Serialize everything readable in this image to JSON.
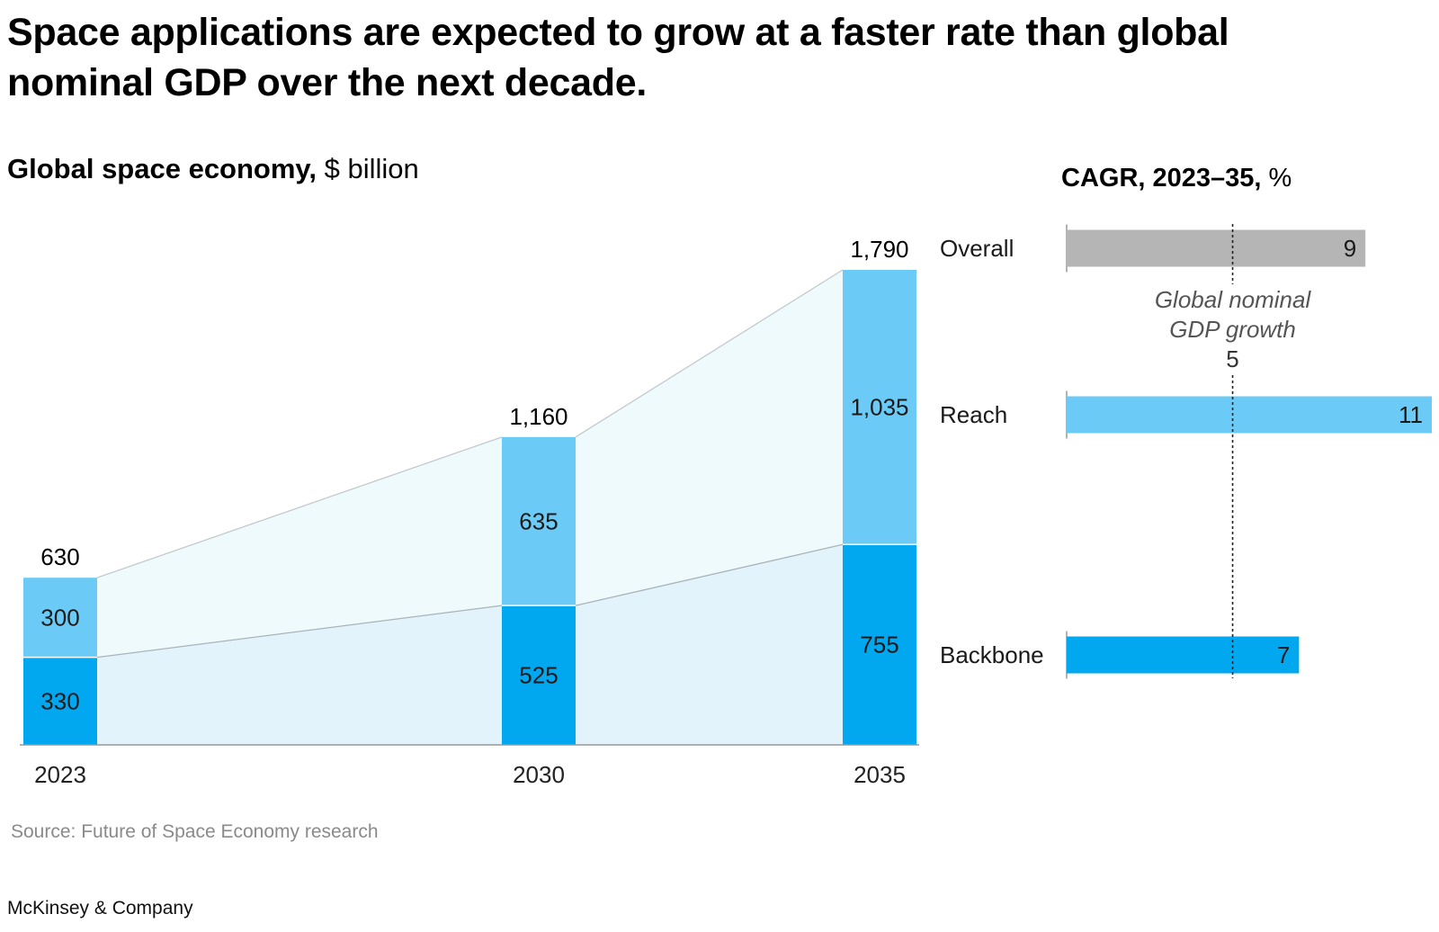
{
  "header": {
    "title": "Space applications are expected to grow at a faster rate than global nominal GDP over the next decade.",
    "subtitle_bold": "Global space economy,",
    "subtitle_unit": "$ billion",
    "cagr_title_bold": "CAGR, 2023–35,",
    "cagr_title_unit": "%"
  },
  "footer": {
    "source": "Source: Future of Space Economy research",
    "brand": "McKinsey & Company"
  },
  "colors": {
    "reach": "#6ccbf6",
    "backbone": "#01a7ef",
    "overall": "#b5b5b5",
    "area_upper": "#effafd",
    "area_lower": "#e3f3fb"
  },
  "chart_data": [
    {
      "type": "bar",
      "stacked": true,
      "categories": [
        "2023",
        "2030",
        "2035"
      ],
      "series": [
        {
          "name": "Backbone",
          "values": [
            330,
            525,
            755
          ]
        },
        {
          "name": "Reach",
          "values": [
            300,
            635,
            1035
          ]
        }
      ],
      "totals": [
        "630",
        "1,160",
        "1,790"
      ],
      "segment_labels": {
        "Backbone": [
          "330",
          "525",
          "755"
        ],
        "Reach": [
          "300",
          "635",
          "1,035"
        ]
      },
      "ylim": [
        0,
        1790
      ]
    },
    {
      "type": "bar",
      "orientation": "horizontal",
      "categories": [
        "Overall",
        "Reach",
        "Backbone"
      ],
      "values": [
        9,
        11,
        7
      ],
      "value_labels": [
        "9",
        "11",
        "7"
      ],
      "xlim": [
        0,
        11
      ],
      "reference_line": {
        "label_line1": "Global nominal",
        "label_line2": "GDP growth",
        "value": 5,
        "value_label": "5"
      }
    }
  ]
}
